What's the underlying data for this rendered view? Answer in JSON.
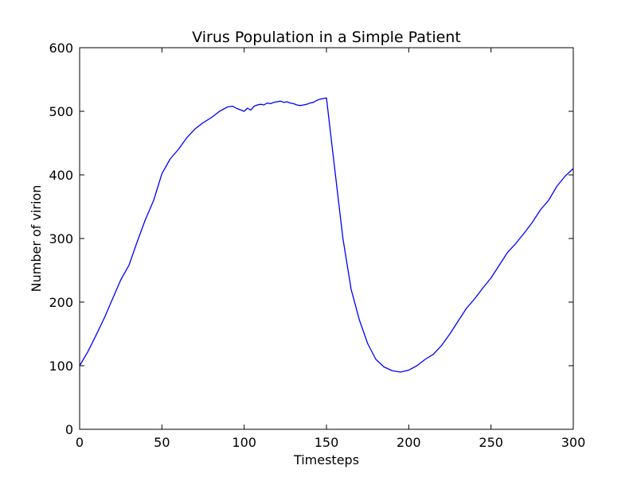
{
  "chart_data": {
    "type": "line",
    "title": "Virus Population in a Simple Patient",
    "xlabel": "Timesteps",
    "ylabel": "Number of virion",
    "xlim": [
      0,
      300
    ],
    "ylim": [
      0,
      600
    ],
    "xticks": [
      0,
      50,
      100,
      150,
      200,
      250,
      300
    ],
    "yticks": [
      0,
      100,
      200,
      300,
      400,
      500,
      600
    ],
    "grid": false,
    "series": [
      {
        "color": "#0000ff",
        "x": [
          0,
          5,
          10,
          15,
          20,
          25,
          30,
          35,
          40,
          45,
          50,
          55,
          60,
          65,
          70,
          75,
          80,
          85,
          90,
          93,
          95,
          98,
          100,
          102,
          104,
          106,
          108,
          110,
          112,
          114,
          116,
          118,
          120,
          122,
          124,
          126,
          128,
          130,
          132,
          134,
          136,
          138,
          140,
          142,
          144,
          146,
          148,
          150,
          155,
          160,
          165,
          170,
          175,
          180,
          185,
          190,
          195,
          200,
          205,
          210,
          215,
          220,
          225,
          230,
          235,
          240,
          245,
          250,
          255,
          260,
          265,
          270,
          275,
          280,
          285,
          290,
          295,
          300
        ],
        "y": [
          100,
          122,
          148,
          175,
          205,
          235,
          258,
          295,
          330,
          360,
          402,
          425,
          440,
          458,
          472,
          482,
          490,
          500,
          507,
          508,
          505,
          502,
          500,
          505,
          502,
          508,
          510,
          511,
          510,
          513,
          512,
          514,
          515,
          516,
          514,
          515,
          513,
          512,
          510,
          509,
          510,
          511,
          513,
          514,
          517,
          519,
          520,
          521,
          410,
          300,
          220,
          172,
          135,
          110,
          98,
          92,
          90,
          93,
          100,
          110,
          118,
          132,
          150,
          170,
          190,
          205,
          222,
          238,
          258,
          278,
          292,
          308,
          325,
          345,
          360,
          382,
          398,
          410
        ]
      }
    ]
  }
}
